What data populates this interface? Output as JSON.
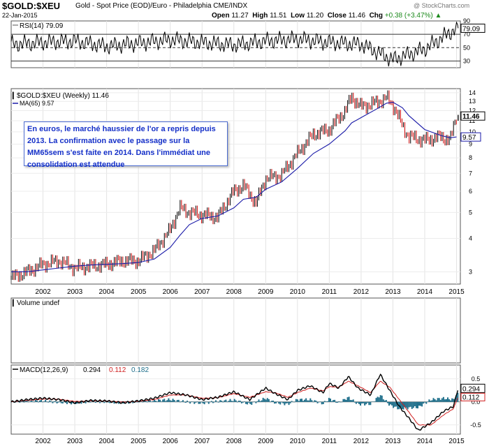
{
  "header": {
    "symbol": "$GOLD:$XEU",
    "subtitle": "Gold - Spot Price (EOD)/Euro - Philadelphia  CME/INDX",
    "date": "22-Jan-2015",
    "open_label": "Open",
    "open": "11.27",
    "high_label": "High",
    "high": "11.51",
    "low_label": "Low",
    "low": "11.20",
    "close_label": "Close",
    "close": "11.46",
    "chg_label": "Chg",
    "chg": "+0.38 (+3.47%)",
    "chg_icon": "up-triangle-icon",
    "logo": "@ StockCharts.com"
  },
  "annotation": "En euros, le marché haussier de l'or a repris depuis 2013. La confirmation avec le passage sur la MM65sem s'est faite en 2014. Dans l'immédiat une consolidation est attendue",
  "colors": {
    "price_up": "#000000",
    "price_down": "#cc0000",
    "ma": "#1a1aa8",
    "macd": "#000000",
    "signal": "#d02020",
    "hist": "#1f6f8b",
    "rsi": "#000000",
    "note_text": "#1530c8"
  },
  "chart_data": [
    {
      "panel": "rsi",
      "type": "line",
      "legend": "RSI(14) 79.09",
      "last_value": "79.09",
      "ylim": [
        20,
        90
      ],
      "yticks": [
        "30",
        "50",
        "70",
        "90"
      ],
      "reference_lines": [
        30,
        50,
        70
      ],
      "x": [
        "2001",
        "2002",
        "2003",
        "2004",
        "2005",
        "2006",
        "2007",
        "2008",
        "2009",
        "2010",
        "2011",
        "2012",
        "2013",
        "2014",
        "2015"
      ],
      "values": [
        55,
        58,
        60,
        52,
        57,
        62,
        58,
        54,
        60,
        63,
        58,
        55,
        32,
        48,
        79
      ]
    },
    {
      "panel": "price",
      "type": "line",
      "scale": "log",
      "legend_price": "$GOLD:$XEU (Weekly) 11.46",
      "legend_ma": "MA(65) 9.57",
      "last_price": "11.46",
      "last_ma": "9.57",
      "yticks": [
        "3",
        "4",
        "5",
        "6",
        "7",
        "8",
        "9",
        "10",
        "11",
        "12",
        "13",
        "14"
      ],
      "ylim": [
        2.7,
        14.5
      ],
      "xticks": [
        "2002",
        "2003",
        "2004",
        "2005",
        "2006",
        "2007",
        "2008",
        "2009",
        "2010",
        "2011",
        "2012",
        "2013",
        "2014",
        "2015"
      ],
      "x": [
        2001.0,
        2001.5,
        2002.0,
        2002.5,
        2003.0,
        2003.5,
        2004.0,
        2004.5,
        2005.0,
        2005.5,
        2006.0,
        2006.3,
        2006.6,
        2007.0,
        2007.5,
        2008.0,
        2008.3,
        2008.7,
        2009.0,
        2009.5,
        2010.0,
        2010.5,
        2011.0,
        2011.5,
        2011.7,
        2012.0,
        2012.5,
        2012.8,
        2013.0,
        2013.3,
        2013.5,
        2014.0,
        2014.5,
        2014.8,
        2015.0
      ],
      "price": [
        2.85,
        3.0,
        3.2,
        3.3,
        3.1,
        3.15,
        3.2,
        3.3,
        3.3,
        3.6,
        4.3,
        5.2,
        5.0,
        4.9,
        4.8,
        6.0,
        6.3,
        5.4,
        6.7,
        6.9,
        8.3,
        9.8,
        10.2,
        12.0,
        13.5,
        12.4,
        12.9,
        13.4,
        12.6,
        10.5,
        9.6,
        9.3,
        9.6,
        9.3,
        11.46
      ],
      "ma": [
        3.0,
        3.0,
        3.05,
        3.1,
        3.15,
        3.18,
        3.2,
        3.22,
        3.25,
        3.35,
        3.7,
        4.1,
        4.5,
        4.75,
        4.85,
        5.2,
        5.6,
        5.7,
        6.1,
        6.5,
        7.3,
        8.3,
        9.0,
        10.1,
        10.8,
        11.3,
        12.2,
        12.8,
        12.9,
        12.3,
        11.5,
        10.2,
        9.7,
        9.5,
        9.57
      ]
    },
    {
      "panel": "volume",
      "type": "bar",
      "legend": "Volume undef"
    },
    {
      "panel": "macd",
      "type": "line",
      "legend_name": "MACD(12,26,9)",
      "legend_macd": "0.294",
      "legend_signal": "0.112",
      "legend_hist": "0.182",
      "ylim": [
        -0.7,
        0.8
      ],
      "yticks": [
        "0.5",
        "0.0",
        "-0.5"
      ],
      "xticks": [
        "2002",
        "2003",
        "2004",
        "2005",
        "2006",
        "2007",
        "2008",
        "2009",
        "2010",
        "2011",
        "2012",
        "2013",
        "2014",
        "2015"
      ],
      "x": [
        2001.0,
        2001.5,
        2002.0,
        2002.5,
        2003.0,
        2003.5,
        2004.0,
        2004.5,
        2005.0,
        2005.5,
        2006.0,
        2006.5,
        2007.0,
        2007.5,
        2008.0,
        2008.5,
        2009.0,
        2009.3,
        2009.7,
        2010.0,
        2010.4,
        2010.8,
        2011.0,
        2011.3,
        2011.6,
        2011.9,
        2012.3,
        2012.6,
        2012.9,
        2013.2,
        2013.5,
        2013.8,
        2014.2,
        2014.6,
        2014.9,
        2015.05
      ],
      "macd": [
        0.0,
        0.05,
        0.08,
        0.05,
        -0.02,
        0.03,
        0.02,
        -0.02,
        0.02,
        0.08,
        0.2,
        0.15,
        0.05,
        0.1,
        0.22,
        0.05,
        0.3,
        0.18,
        0.05,
        0.25,
        0.35,
        0.2,
        0.4,
        0.3,
        0.55,
        0.3,
        0.15,
        0.6,
        0.25,
        -0.1,
        -0.35,
        -0.62,
        -0.45,
        -0.2,
        -0.1,
        0.294
      ],
      "signal": [
        0.0,
        0.03,
        0.06,
        0.06,
        0.01,
        0.02,
        0.02,
        0.0,
        0.01,
        0.05,
        0.15,
        0.15,
        0.08,
        0.09,
        0.18,
        0.1,
        0.22,
        0.2,
        0.1,
        0.2,
        0.3,
        0.24,
        0.33,
        0.32,
        0.45,
        0.35,
        0.2,
        0.45,
        0.32,
        0.05,
        -0.22,
        -0.5,
        -0.5,
        -0.28,
        -0.15,
        0.112
      ]
    }
  ]
}
